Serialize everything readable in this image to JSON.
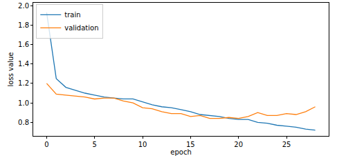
{
  "chart_data": {
    "type": "line",
    "x_label": "epoch",
    "y_label": "loss value",
    "x": [
      0,
      1,
      2,
      3,
      4,
      5,
      6,
      7,
      8,
      9,
      10,
      11,
      12,
      13,
      14,
      15,
      16,
      17,
      18,
      19,
      20,
      21,
      22,
      23,
      24,
      25,
      26,
      27,
      28
    ],
    "series": [
      {
        "name": "train",
        "color": "#1f77b4",
        "values": [
          1.93,
          1.25,
          1.16,
          1.13,
          1.1,
          1.08,
          1.06,
          1.05,
          1.04,
          1.04,
          1.01,
          0.98,
          0.96,
          0.95,
          0.93,
          0.91,
          0.88,
          0.87,
          0.86,
          0.84,
          0.83,
          0.83,
          0.8,
          0.79,
          0.77,
          0.76,
          0.75,
          0.73,
          0.72
        ]
      },
      {
        "name": "validation",
        "color": "#ff7f0e",
        "values": [
          1.2,
          1.09,
          1.08,
          1.07,
          1.06,
          1.04,
          1.05,
          1.05,
          1.02,
          1.0,
          0.95,
          0.94,
          0.91,
          0.89,
          0.89,
          0.86,
          0.87,
          0.84,
          0.84,
          0.85,
          0.84,
          0.86,
          0.9,
          0.87,
          0.87,
          0.89,
          0.88,
          0.91,
          0.96
        ]
      }
    ],
    "xlim": [
      -1.4,
      29.4
    ],
    "xticks": [
      0,
      5,
      10,
      15,
      20,
      25
    ],
    "ylim": [
      0.66,
      2.03
    ],
    "yticks": [
      {
        "value": 0.8,
        "label": "0.8"
      },
      {
        "value": 1.0,
        "label": "1.0"
      },
      {
        "value": 1.2,
        "label": "1.2"
      },
      {
        "value": 1.4,
        "label": "1.4"
      },
      {
        "value": 1.6,
        "label": "1.6"
      },
      {
        "value": 1.8,
        "label": "1.8"
      },
      {
        "value": 2.0,
        "label": "2.0"
      }
    ],
    "grid": false,
    "legend": "upper left"
  }
}
